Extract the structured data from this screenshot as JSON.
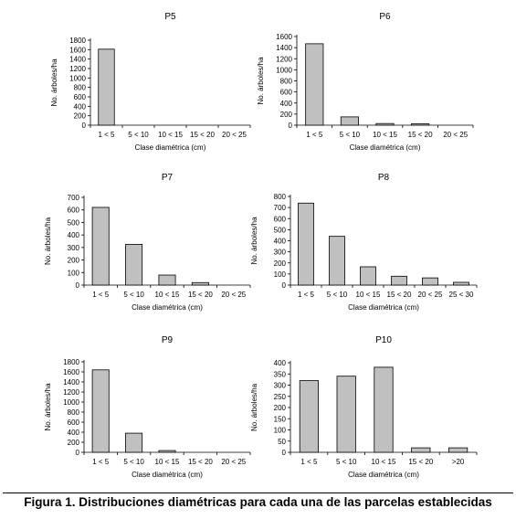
{
  "caption": "Figura 1. Distribuciones diamétricas para cada una de las parcelas establecidas",
  "colors": {
    "bar_fill": "#c0c0c0",
    "bar_stroke": "#000000"
  },
  "chart_data": [
    {
      "type": "bar",
      "title": "P5",
      "xlabel": "Clase diamétrica (cm)",
      "ylabel": "No. árboles/ha",
      "categories": [
        "1 < 5",
        "5 < 10",
        "10 < 15",
        "15 < 20",
        "20 < 25"
      ],
      "values": [
        1610,
        0,
        0,
        0,
        0
      ],
      "ylim": [
        0,
        1800
      ],
      "yticks": [
        0,
        200,
        400,
        600,
        800,
        1000,
        1200,
        1400,
        1600,
        1800
      ]
    },
    {
      "type": "bar",
      "title": "P6",
      "xlabel": "Clase diamétrica (cm)",
      "ylabel": "No. árboles/ha",
      "categories": [
        "1 < 5",
        "5 < 10",
        "10 < 15",
        "15 < 20",
        "20 < 25"
      ],
      "values": [
        1470,
        150,
        30,
        25,
        0
      ],
      "ylim": [
        0,
        1600
      ],
      "yticks": [
        0,
        200,
        400,
        600,
        800,
        1000,
        1200,
        1400,
        1600
      ]
    },
    {
      "type": "bar",
      "title": "P7",
      "xlabel": "Clase diamétrica (cm)",
      "ylabel": "No. árboles/ha",
      "categories": [
        "1 < 5",
        "5 < 10",
        "10 < 15",
        "15 < 20",
        "20 < 25"
      ],
      "values": [
        620,
        325,
        80,
        20,
        0
      ],
      "ylim": [
        0,
        700
      ],
      "yticks": [
        0,
        100,
        200,
        300,
        400,
        500,
        600,
        700
      ]
    },
    {
      "type": "bar",
      "title": "P8",
      "xlabel": "Clase diamétrica (cm)",
      "ylabel": "No. árboles/ha",
      "categories": [
        "1 < 5",
        "5 < 10",
        "10 < 15",
        "15 < 20",
        "20 < 25",
        "25 < 30"
      ],
      "values": [
        740,
        440,
        165,
        80,
        65,
        25
      ],
      "ylim": [
        0,
        800
      ],
      "yticks": [
        0,
        100,
        200,
        300,
        400,
        500,
        600,
        700,
        800
      ]
    },
    {
      "type": "bar",
      "title": "P9",
      "xlabel": "Clase diamétrica (cm)",
      "ylabel": "No. árboles/ha",
      "categories": [
        "1 < 5",
        "5 < 10",
        "10 < 15",
        "15 < 20",
        "20 < 25"
      ],
      "values": [
        1640,
        380,
        35,
        0,
        0
      ],
      "ylim": [
        0,
        1800
      ],
      "yticks": [
        0,
        200,
        400,
        600,
        800,
        1000,
        1200,
        1400,
        1600,
        1800
      ]
    },
    {
      "type": "bar",
      "title": "P10",
      "xlabel": "Clase diamétrica (cm)",
      "ylabel": "No. árboles/ha",
      "categories": [
        "1 < 5",
        "5 < 10",
        "10 < 15",
        "15 < 20",
        ">20"
      ],
      "values": [
        320,
        340,
        380,
        20,
        20
      ],
      "ylim": [
        0,
        400
      ],
      "yticks": [
        0,
        50,
        100,
        150,
        200,
        250,
        300,
        350,
        400
      ]
    }
  ]
}
